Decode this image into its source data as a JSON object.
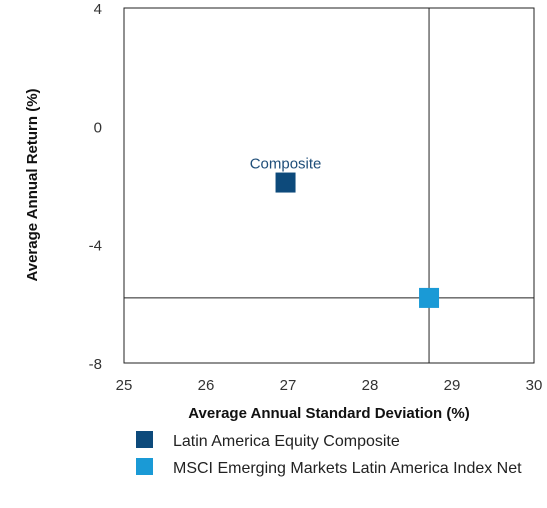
{
  "chart_data": {
    "type": "scatter",
    "xlabel": "Average Annual Standard Deviation (%)",
    "ylabel": "Average Annual Return (%)",
    "xlim": [
      25,
      30
    ],
    "ylim": [
      -8,
      4
    ],
    "x_ticks": [
      25,
      26,
      27,
      28,
      29,
      30
    ],
    "y_ticks": [
      4,
      0,
      -4,
      -8
    ],
    "grid": false,
    "legend_position": "bottom",
    "series": [
      {
        "name": "Latin America Equity Composite",
        "color": "#0d4a7b",
        "x": [
          26.97
        ],
        "y": [
          -1.9
        ],
        "annotation": "Composite"
      },
      {
        "name": "MSCI Emerging Markets Latin America Index Net",
        "color": "#1a9ad6",
        "x": [
          28.72
        ],
        "y": [
          -5.8
        ]
      }
    ],
    "benchmark_crosshair": {
      "x": 28.72,
      "y": -5.8
    }
  }
}
